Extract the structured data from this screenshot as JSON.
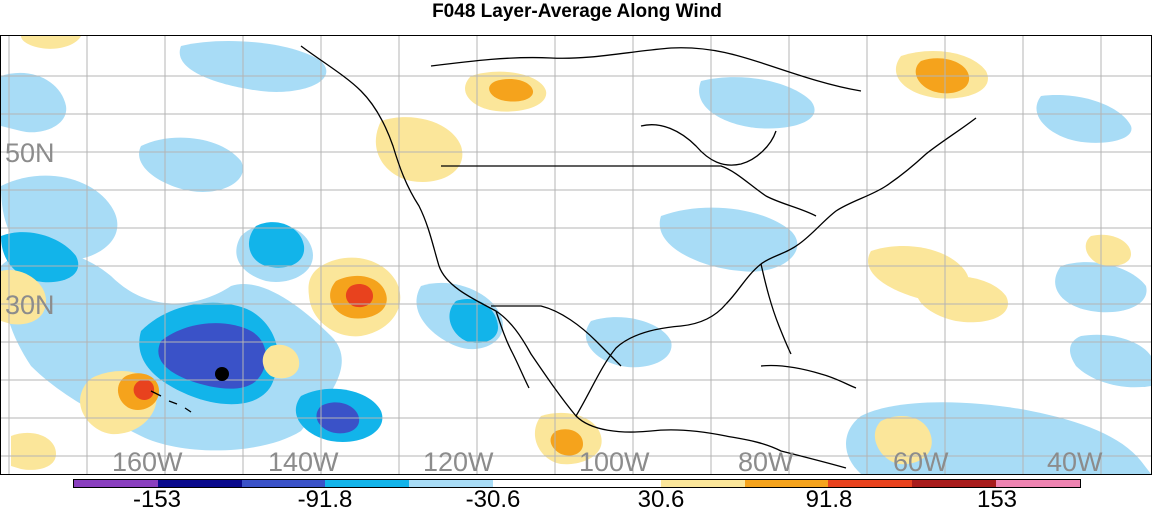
{
  "title": "F048 Layer-Average Along Wind",
  "lat_labels": [
    {
      "text": "50N",
      "value": 50
    },
    {
      "text": "30N",
      "value": 30
    }
  ],
  "lon_labels": [
    {
      "text": "160W",
      "value": -160
    },
    {
      "text": "140W",
      "value": -140
    },
    {
      "text": "120W",
      "value": -120
    },
    {
      "text": "100W",
      "value": -100
    },
    {
      "text": "80W",
      "value": -80
    },
    {
      "text": "60W",
      "value": -60
    },
    {
      "text": "40W",
      "value": -40
    }
  ],
  "colorbar": {
    "colors": [
      "#8a3fbf",
      "#0a0a8c",
      "#3a52c8",
      "#12b4ea",
      "#a8dcf6",
      "#ffffff",
      "#ffffff",
      "#fbe69a",
      "#f5a31c",
      "#e8421e",
      "#a81c1c",
      "#ef84b2"
    ],
    "labels": [
      {
        "text": "-153",
        "position": 2
      },
      {
        "text": "-91.8",
        "position": 4
      },
      {
        "text": "-30.6",
        "position": 6
      },
      {
        "text": "30.6",
        "position": 8
      },
      {
        "text": "91.8",
        "position": 10
      },
      {
        "text": "153",
        "position": 12
      }
    ]
  },
  "colors": {
    "graticule": "#b4b4b4",
    "coast": "#000000",
    "neg_light": "#a8dcf6",
    "neg_mid": "#12b4ea",
    "neg_strong": "#3a52c8",
    "neg_deep": "#0a0a8c",
    "pos_light": "#fbe69a",
    "pos_mid": "#f5a31c",
    "pos_strong": "#e8421e",
    "marker": "#000000"
  }
}
